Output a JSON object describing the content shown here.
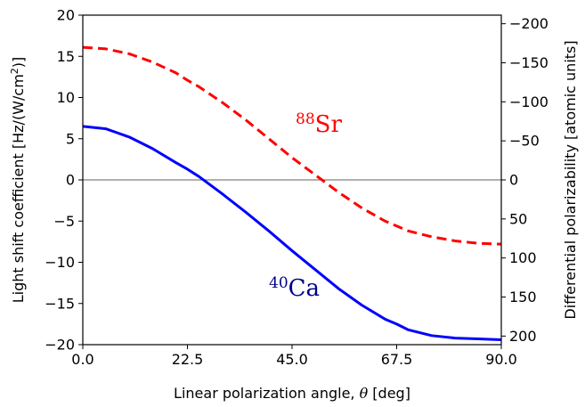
{
  "chart_data": {
    "type": "line",
    "xlabel_main": "Linear polarization angle, ",
    "xlabel_symbol": "θ",
    "xlabel_unit": " [deg]",
    "ylabel_left": "Light shift coefficient [Hz/(W/cm",
    "ylabel_left_sup": "2",
    "ylabel_left_end": ")]",
    "ylabel_right": "Differential polarizability [atomic units]",
    "xlim": [
      0,
      90
    ],
    "ylim_left": [
      -20,
      20
    ],
    "ylim_right": [
      211,
      -211
    ],
    "xticks": [
      0.0,
      22.5,
      45.0,
      67.5,
      90.0
    ],
    "xtick_labels": [
      "0.0",
      "22.5",
      "45.0",
      "67.5",
      "90.0"
    ],
    "yticks_left": [
      -20,
      -15,
      -10,
      -5,
      0,
      5,
      10,
      15,
      20
    ],
    "ytick_left_labels": [
      "−20",
      "−15",
      "−10",
      "−5",
      "0",
      "5",
      "10",
      "15",
      "20"
    ],
    "yticks_right": [
      -200,
      -150,
      -100,
      -50,
      0,
      50,
      100,
      150,
      200
    ],
    "ytick_right_labels": [
      "−200",
      "−150",
      "−100",
      "−50",
      "0",
      "50",
      "100",
      "150",
      "200"
    ],
    "zero_line_color": "#808080",
    "series": [
      {
        "name_sup": "88",
        "name_main": "Sr",
        "color": "#ff0000",
        "style": "dashed",
        "x": [
          0,
          5,
          10,
          15,
          20,
          22.5,
          25,
          30,
          35,
          40,
          45,
          50,
          55,
          60,
          65,
          67.5,
          70,
          75,
          80,
          85,
          90
        ],
        "y": [
          16.1,
          15.9,
          15.3,
          14.3,
          13.0,
          12.1,
          11.3,
          9.4,
          7.3,
          5.0,
          2.7,
          0.6,
          -1.5,
          -3.4,
          -5.0,
          -5.6,
          -6.2,
          -6.9,
          -7.4,
          -7.7,
          -7.8
        ]
      },
      {
        "name_sup": "40",
        "name_main": "Ca",
        "color": "#0000ff",
        "style": "solid",
        "x": [
          0,
          5,
          10,
          15,
          20,
          22.5,
          25,
          30,
          35,
          40,
          45,
          50,
          55,
          60,
          65,
          67.5,
          70,
          75,
          80,
          85,
          90
        ],
        "y": [
          6.5,
          6.2,
          5.2,
          3.8,
          2.1,
          1.3,
          0.4,
          -1.7,
          -3.9,
          -6.2,
          -8.6,
          -10.9,
          -13.2,
          -15.2,
          -16.9,
          -17.5,
          -18.2,
          -18.9,
          -19.2,
          -19.3,
          -19.4
        ]
      }
    ]
  }
}
